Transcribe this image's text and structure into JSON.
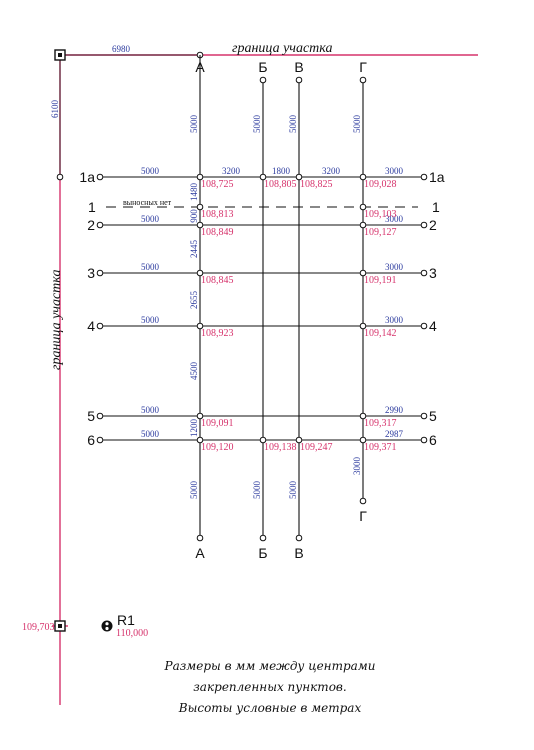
{
  "border_label": "граница участка",
  "top_dimension": "6980",
  "left_dimension": "6100",
  "corner_elevation": "109,703",
  "benchmark": {
    "name": "R1",
    "elevation": "110,000"
  },
  "no_offsets_label": "выносных нет",
  "columns": [
    {
      "id": "A",
      "label": "А",
      "top_offset": "5000",
      "bottom_offset": "5000"
    },
    {
      "id": "B",
      "label": "Б",
      "top_offset": "5000",
      "bottom_offset": "5000"
    },
    {
      "id": "V",
      "label": "В",
      "top_offset": "5000",
      "bottom_offset": "5000"
    },
    {
      "id": "G",
      "label": "Г",
      "top_offset": "5000",
      "bottom_offset": "3000"
    }
  ],
  "rows": [
    {
      "id": "1a",
      "label": "1а",
      "left_offset": "5000",
      "right_offset": "3000"
    },
    {
      "id": "1",
      "label": "1",
      "left_offset": "",
      "right_offset": ""
    },
    {
      "id": "2",
      "label": "2",
      "left_offset": "5000",
      "right_offset": "3000"
    },
    {
      "id": "3",
      "label": "3",
      "left_offset": "5000",
      "right_offset": "3000"
    },
    {
      "id": "4",
      "label": "4",
      "left_offset": "5000",
      "right_offset": "3000"
    },
    {
      "id": "5",
      "label": "5",
      "left_offset": "5000",
      "right_offset": "2990"
    },
    {
      "id": "6",
      "label": "6",
      "left_offset": "5000",
      "right_offset": "2987"
    }
  ],
  "column_spacings": [
    "3200",
    "1800",
    "3200"
  ],
  "row_spacings": [
    "1480",
    "900",
    "2445",
    "2655",
    "4500",
    "1200"
  ],
  "elevations": {
    "1a": {
      "A": "108,725",
      "B": "108,805",
      "V": "108,825",
      "G": "109,028"
    },
    "1": {
      "A": "108,813",
      "G": "109,103"
    },
    "2": {
      "A": "108,849",
      "G": "109,127"
    },
    "3": {
      "A": "108,845",
      "G": "109,191"
    },
    "4": {
      "A": "108,923",
      "G": "109,142"
    },
    "5": {
      "A": "109,091",
      "G": "109,317"
    },
    "6": {
      "A": "109,120",
      "B": "109,138",
      "V": "109,247",
      "G": "109,371"
    }
  },
  "note": [
    "Размеры в мм между центрами",
    "закрепленных пунктов.",
    "Высоты условные в метрах"
  ],
  "colors": {
    "border": "#d6336c",
    "dimension": "#2b3a9e",
    "elevation": "#d6336c",
    "line": "#111111"
  }
}
